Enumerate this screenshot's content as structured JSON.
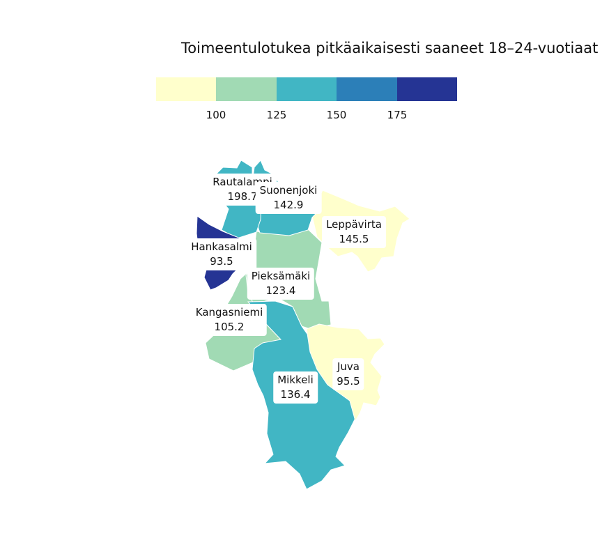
{
  "title": "Toimeentulotukea pitkäaikaisesti saaneet 18–24-vuotiaat",
  "legend": {
    "colors": [
      "#ffffcc",
      "#a1dab4",
      "#41b6c4",
      "#2c7fb8",
      "#253494"
    ],
    "ticks": [
      "100",
      "125",
      "150",
      "175"
    ]
  },
  "regions": [
    {
      "name": "Rautalampi",
      "value": "198.7",
      "color": "#253494"
    },
    {
      "name": "Suonenjoki",
      "value": "142.9",
      "color": "#41b6c4"
    },
    {
      "name": "Leppävirta",
      "value": "145.5",
      "color": "#41b6c4"
    },
    {
      "name": "Hankasalmi",
      "value": "93.5",
      "color": "#ffffcc"
    },
    {
      "name": "Pieksämäki",
      "value": "123.4",
      "color": "#a1dab4"
    },
    {
      "name": "Kangasniemi",
      "value": "105.2",
      "color": "#a1dab4"
    },
    {
      "name": "Mikkeli",
      "value": "136.4",
      "color": "#41b6c4"
    },
    {
      "name": "Juva",
      "value": "95.5",
      "color": "#ffffcc"
    }
  ]
}
